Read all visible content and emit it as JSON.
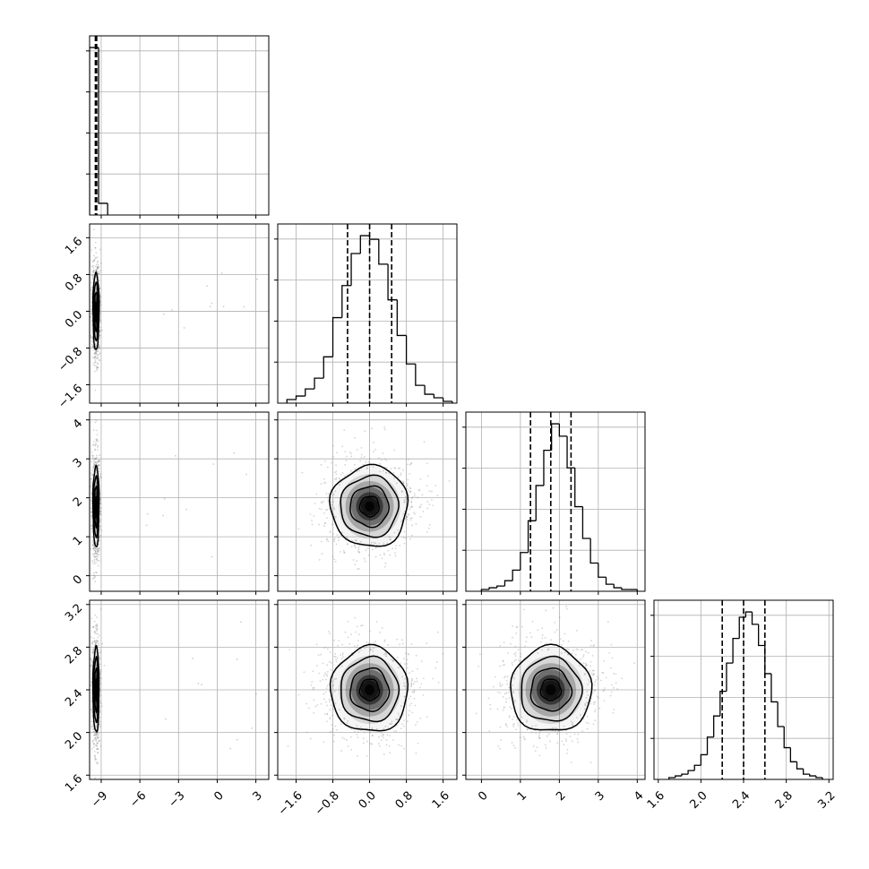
{
  "chart_data": {
    "type": "corner",
    "grid": true,
    "variables": [
      {
        "range": [
          -9.9,
          4.0
        ],
        "ticks": [
          -9,
          -6,
          -3,
          0,
          3
        ],
        "tick_labels": [
          "−9",
          "−6",
          "−3",
          "0",
          "3"
        ],
        "quantiles": [
          -9.45,
          -9.4,
          -9.35
        ],
        "hist": {
          "bin_edges": [
            -9.9,
            -9.2,
            -8.5
          ],
          "counts": [
            100,
            7
          ]
        },
        "y_ticks": [],
        "y_tick_labels": []
      },
      {
        "range": [
          -2.0,
          1.9
        ],
        "ticks": [
          -1.6,
          -0.8,
          0.0,
          0.8,
          1.6
        ],
        "tick_labels": [
          "−1.6",
          "−0.8",
          "0.0",
          "0.8",
          "1.6"
        ],
        "quantiles": [
          -0.48,
          0.0,
          0.48
        ],
        "hist": {
          "bin_edges": [
            -1.8,
            -1.6,
            -1.4,
            -1.2,
            -1.0,
            -0.8,
            -0.6,
            -0.4,
            -0.2,
            0.0,
            0.2,
            0.4,
            0.6,
            0.8,
            1.0,
            1.2,
            1.4,
            1.6,
            1.8
          ],
          "counts": [
            2,
            4,
            8,
            14,
            26,
            48,
            66,
            84,
            94,
            92,
            78,
            58,
            38,
            22,
            10,
            5,
            3,
            1
          ]
        },
        "y_ticks": [
          -1.6,
          -0.8,
          0.0,
          0.8,
          1.6
        ],
        "y_tick_labels": [
          "−1.6",
          "−0.8",
          "0.0",
          "0.8",
          "1.6"
        ]
      },
      {
        "range": [
          -0.4,
          4.2
        ],
        "ticks": [
          0,
          1,
          2,
          3,
          4
        ],
        "tick_labels": [
          "0",
          "1",
          "2",
          "3",
          "4"
        ],
        "quantiles": [
          1.26,
          1.78,
          2.3
        ],
        "hist": {
          "bin_edges": [
            0.0,
            0.2,
            0.4,
            0.6,
            0.8,
            1.0,
            1.2,
            1.4,
            1.6,
            1.8,
            2.0,
            2.2,
            2.4,
            2.6,
            2.8,
            3.0,
            3.2,
            3.4,
            3.6,
            3.8,
            4.0
          ],
          "counts": [
            1,
            2,
            3,
            6,
            12,
            22,
            40,
            60,
            80,
            95,
            88,
            70,
            48,
            30,
            16,
            8,
            4,
            2,
            1,
            1
          ]
        },
        "y_ticks": [
          0,
          1,
          2,
          3,
          4
        ],
        "y_tick_labels": [
          "0",
          "1",
          "2",
          "3",
          "4"
        ]
      },
      {
        "range": [
          1.56,
          3.24
        ],
        "ticks": [
          1.6,
          2.0,
          2.4,
          2.8,
          3.2
        ],
        "tick_labels": [
          "1.6",
          "2.0",
          "2.4",
          "2.8",
          "3.2"
        ],
        "quantiles": [
          2.2,
          2.4,
          2.6
        ],
        "hist": {
          "bin_edges": [
            1.7,
            1.76,
            1.82,
            1.88,
            1.94,
            2.0,
            2.06,
            2.12,
            2.18,
            2.24,
            2.3,
            2.36,
            2.42,
            2.48,
            2.54,
            2.6,
            2.66,
            2.72,
            2.78,
            2.84,
            2.9,
            2.96,
            3.02,
            3.08,
            3.14
          ],
          "counts": [
            1,
            2,
            3,
            5,
            8,
            14,
            24,
            36,
            50,
            66,
            80,
            92,
            95,
            88,
            76,
            60,
            44,
            30,
            18,
            10,
            6,
            3,
            2,
            1
          ]
        },
        "y_ticks": [
          1.6,
          2.0,
          2.4,
          2.8,
          3.2
        ],
        "y_tick_labels": [
          "1.6",
          "2.0",
          "2.4",
          "2.8",
          "3.2"
        ]
      }
    ],
    "pairs": [
      {
        "row": 1,
        "col": 0,
        "center": [
          -9.4,
          0.0
        ],
        "spread": [
          0.12,
          0.42
        ]
      },
      {
        "row": 2,
        "col": 0,
        "center": [
          -9.4,
          1.78
        ],
        "spread": [
          0.12,
          0.52
        ]
      },
      {
        "row": 2,
        "col": 1,
        "center": [
          0.0,
          1.78
        ],
        "spread": [
          0.42,
          0.52
        ]
      },
      {
        "row": 3,
        "col": 0,
        "center": [
          -9.4,
          2.4
        ],
        "spread": [
          0.12,
          0.2
        ]
      },
      {
        "row": 3,
        "col": 1,
        "center": [
          0.0,
          2.4
        ],
        "spread": [
          0.42,
          0.2
        ]
      },
      {
        "row": 3,
        "col": 2,
        "center": [
          1.78,
          2.4
        ],
        "spread": [
          0.52,
          0.2
        ]
      }
    ],
    "contour_levels_sigma": [
      0.5,
      1.0,
      1.5,
      2.0
    ]
  },
  "colors": {
    "axes": "#000000",
    "grid": "#b0b0b0",
    "hist_line": "#000000",
    "density_dark": "#000000",
    "points": "#888888"
  }
}
